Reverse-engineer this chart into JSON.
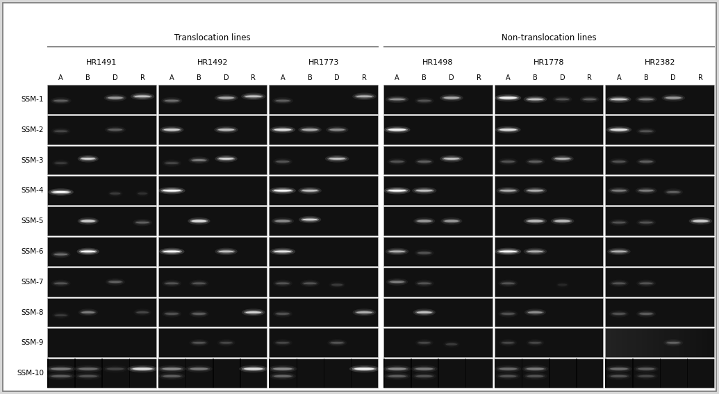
{
  "translocation_label": "Translocation lines",
  "non_translocation_label": "Non-translocation lines",
  "line_groups": [
    {
      "name": "HR1491",
      "translocation": true
    },
    {
      "name": "HR1492",
      "translocation": true
    },
    {
      "name": "HR1773",
      "translocation": true
    },
    {
      "name": "HR1498",
      "translocation": false
    },
    {
      "name": "HR1778",
      "translocation": false
    },
    {
      "name": "HR2382",
      "translocation": false
    }
  ],
  "channels": [
    "A",
    "B",
    "D",
    "R"
  ],
  "ssm_labels": [
    "SSM-1",
    "SSM-2",
    "SSM-3",
    "SSM-4",
    "SSM-5",
    "SSM-6",
    "SSM-7",
    "SSM-8",
    "SSM-9",
    "SSM-10"
  ],
  "outer_bg": "#d8d8d8",
  "panel_bg": "#111111",
  "bands": {
    "HR1491": {
      "SSM-1": [
        {
          "ch": "A",
          "yf": 0.55,
          "wf": 0.7,
          "br": 0.55
        },
        {
          "ch": "D",
          "yf": 0.45,
          "wf": 0.75,
          "br": 0.75
        },
        {
          "ch": "R",
          "yf": 0.4,
          "wf": 0.8,
          "br": 0.85
        }
      ],
      "SSM-2": [
        {
          "ch": "A",
          "yf": 0.55,
          "wf": 0.65,
          "br": 0.45
        },
        {
          "ch": "D",
          "yf": 0.5,
          "wf": 0.7,
          "br": 0.55
        }
      ],
      "SSM-3": [
        {
          "ch": "A",
          "yf": 0.6,
          "wf": 0.6,
          "br": 0.4
        },
        {
          "ch": "B",
          "yf": 0.45,
          "wf": 0.7,
          "br": 0.9
        }
      ],
      "SSM-4": [
        {
          "ch": "A",
          "yf": 0.55,
          "wf": 0.85,
          "br": 1.0
        },
        {
          "ch": "D",
          "yf": 0.6,
          "wf": 0.5,
          "br": 0.4
        },
        {
          "ch": "R",
          "yf": 0.6,
          "wf": 0.45,
          "br": 0.35
        }
      ],
      "SSM-5": [
        {
          "ch": "B",
          "yf": 0.5,
          "wf": 0.7,
          "br": 0.9
        },
        {
          "ch": "R",
          "yf": 0.55,
          "wf": 0.65,
          "br": 0.55
        }
      ],
      "SSM-6": [
        {
          "ch": "A",
          "yf": 0.6,
          "wf": 0.65,
          "br": 0.6
        },
        {
          "ch": "B",
          "yf": 0.5,
          "wf": 0.75,
          "br": 1.0
        }
      ],
      "SSM-7": [
        {
          "ch": "A",
          "yf": 0.55,
          "wf": 0.65,
          "br": 0.5
        },
        {
          "ch": "D",
          "yf": 0.5,
          "wf": 0.65,
          "br": 0.55
        }
      ],
      "SSM-8": [
        {
          "ch": "A",
          "yf": 0.6,
          "wf": 0.6,
          "br": 0.4
        },
        {
          "ch": "B",
          "yf": 0.5,
          "wf": 0.65,
          "br": 0.65
        },
        {
          "ch": "R",
          "yf": 0.5,
          "wf": 0.6,
          "br": 0.45
        }
      ],
      "SSM-9": [],
      "SSM-10": [
        {
          "ch": "A",
          "yf": 0.35,
          "wf": 1.0,
          "br": 0.65
        },
        {
          "ch": "A",
          "yf": 0.6,
          "wf": 0.95,
          "br": 0.55
        },
        {
          "ch": "B",
          "yf": 0.35,
          "wf": 0.95,
          "br": 0.6
        },
        {
          "ch": "B",
          "yf": 0.6,
          "wf": 0.9,
          "br": 0.5
        },
        {
          "ch": "D",
          "yf": 0.35,
          "wf": 0.85,
          "br": 0.45
        },
        {
          "ch": "R",
          "yf": 0.35,
          "wf": 1.0,
          "br": 0.95
        }
      ]
    },
    "HR1492": {
      "SSM-1": [
        {
          "ch": "A",
          "yf": 0.55,
          "wf": 0.7,
          "br": 0.6
        },
        {
          "ch": "D",
          "yf": 0.45,
          "wf": 0.78,
          "br": 0.8
        },
        {
          "ch": "R",
          "yf": 0.4,
          "wf": 0.82,
          "br": 0.85
        }
      ],
      "SSM-2": [
        {
          "ch": "A",
          "yf": 0.5,
          "wf": 0.8,
          "br": 0.9
        },
        {
          "ch": "D",
          "yf": 0.5,
          "wf": 0.8,
          "br": 0.85
        }
      ],
      "SSM-3": [
        {
          "ch": "A",
          "yf": 0.6,
          "wf": 0.65,
          "br": 0.45
        },
        {
          "ch": "B",
          "yf": 0.5,
          "wf": 0.7,
          "br": 0.65
        },
        {
          "ch": "D",
          "yf": 0.45,
          "wf": 0.75,
          "br": 0.9
        }
      ],
      "SSM-4": [
        {
          "ch": "A",
          "yf": 0.5,
          "wf": 0.9,
          "br": 1.0
        }
      ],
      "SSM-5": [
        {
          "ch": "B",
          "yf": 0.5,
          "wf": 0.75,
          "br": 0.95
        }
      ],
      "SSM-6": [
        {
          "ch": "A",
          "yf": 0.5,
          "wf": 0.85,
          "br": 1.0
        },
        {
          "ch": "D",
          "yf": 0.5,
          "wf": 0.75,
          "br": 0.85
        }
      ],
      "SSM-7": [
        {
          "ch": "A",
          "yf": 0.55,
          "wf": 0.65,
          "br": 0.5
        },
        {
          "ch": "B",
          "yf": 0.55,
          "wf": 0.65,
          "br": 0.5
        }
      ],
      "SSM-8": [
        {
          "ch": "A",
          "yf": 0.55,
          "wf": 0.65,
          "br": 0.5
        },
        {
          "ch": "B",
          "yf": 0.55,
          "wf": 0.65,
          "br": 0.55
        },
        {
          "ch": "R",
          "yf": 0.5,
          "wf": 0.78,
          "br": 0.9
        }
      ],
      "SSM-9": [
        {
          "ch": "B",
          "yf": 0.5,
          "wf": 0.65,
          "br": 0.5
        },
        {
          "ch": "D",
          "yf": 0.5,
          "wf": 0.6,
          "br": 0.45
        }
      ],
      "SSM-10": [
        {
          "ch": "A",
          "yf": 0.35,
          "wf": 0.95,
          "br": 0.7
        },
        {
          "ch": "A",
          "yf": 0.6,
          "wf": 0.88,
          "br": 0.55
        },
        {
          "ch": "B",
          "yf": 0.35,
          "wf": 0.9,
          "br": 0.65
        },
        {
          "ch": "R",
          "yf": 0.35,
          "wf": 0.95,
          "br": 0.95
        }
      ]
    },
    "HR1773": {
      "SSM-1": [
        {
          "ch": "A",
          "yf": 0.55,
          "wf": 0.7,
          "br": 0.55
        },
        {
          "ch": "R",
          "yf": 0.4,
          "wf": 0.8,
          "br": 0.8
        }
      ],
      "SSM-2": [
        {
          "ch": "A",
          "yf": 0.5,
          "wf": 0.85,
          "br": 0.95
        },
        {
          "ch": "B",
          "yf": 0.5,
          "wf": 0.78,
          "br": 0.8
        },
        {
          "ch": "D",
          "yf": 0.5,
          "wf": 0.75,
          "br": 0.7
        }
      ],
      "SSM-3": [
        {
          "ch": "A",
          "yf": 0.55,
          "wf": 0.65,
          "br": 0.5
        },
        {
          "ch": "D",
          "yf": 0.45,
          "wf": 0.8,
          "br": 0.85
        }
      ],
      "SSM-4": [
        {
          "ch": "A",
          "yf": 0.5,
          "wf": 0.88,
          "br": 1.0
        },
        {
          "ch": "B",
          "yf": 0.5,
          "wf": 0.78,
          "br": 0.85
        }
      ],
      "SSM-5": [
        {
          "ch": "A",
          "yf": 0.5,
          "wf": 0.75,
          "br": 0.7
        },
        {
          "ch": "B",
          "yf": 0.45,
          "wf": 0.75,
          "br": 0.9
        }
      ],
      "SSM-6": [
        {
          "ch": "A",
          "yf": 0.5,
          "wf": 0.85,
          "br": 0.95
        }
      ],
      "SSM-7": [
        {
          "ch": "A",
          "yf": 0.55,
          "wf": 0.65,
          "br": 0.5
        },
        {
          "ch": "B",
          "yf": 0.55,
          "wf": 0.65,
          "br": 0.5
        },
        {
          "ch": "D",
          "yf": 0.6,
          "wf": 0.55,
          "br": 0.4
        }
      ],
      "SSM-8": [
        {
          "ch": "A",
          "yf": 0.55,
          "wf": 0.65,
          "br": 0.5
        },
        {
          "ch": "R",
          "yf": 0.5,
          "wf": 0.78,
          "br": 0.8
        }
      ],
      "SSM-9": [
        {
          "ch": "A",
          "yf": 0.5,
          "wf": 0.65,
          "br": 0.45
        },
        {
          "ch": "D",
          "yf": 0.5,
          "wf": 0.65,
          "br": 0.5
        }
      ],
      "SSM-10": [
        {
          "ch": "A",
          "yf": 0.35,
          "wf": 0.95,
          "br": 0.7
        },
        {
          "ch": "A",
          "yf": 0.6,
          "wf": 0.88,
          "br": 0.58
        },
        {
          "ch": "R",
          "yf": 0.35,
          "wf": 1.0,
          "br": 1.0
        }
      ]
    },
    "HR1498": {
      "SSM-1": [
        {
          "ch": "A",
          "yf": 0.5,
          "wf": 0.78,
          "br": 0.7
        },
        {
          "ch": "B",
          "yf": 0.55,
          "wf": 0.65,
          "br": 0.5
        },
        {
          "ch": "D",
          "yf": 0.45,
          "wf": 0.78,
          "br": 0.8
        }
      ],
      "SSM-2": [
        {
          "ch": "A",
          "yf": 0.5,
          "wf": 0.88,
          "br": 1.0
        }
      ],
      "SSM-3": [
        {
          "ch": "A",
          "yf": 0.55,
          "wf": 0.65,
          "br": 0.5
        },
        {
          "ch": "B",
          "yf": 0.55,
          "wf": 0.65,
          "br": 0.55
        },
        {
          "ch": "D",
          "yf": 0.45,
          "wf": 0.78,
          "br": 0.85
        }
      ],
      "SSM-4": [
        {
          "ch": "A",
          "yf": 0.5,
          "wf": 0.88,
          "br": 1.0
        },
        {
          "ch": "B",
          "yf": 0.5,
          "wf": 0.82,
          "br": 0.85
        }
      ],
      "SSM-5": [
        {
          "ch": "B",
          "yf": 0.5,
          "wf": 0.72,
          "br": 0.75
        },
        {
          "ch": "D",
          "yf": 0.5,
          "wf": 0.72,
          "br": 0.75
        }
      ],
      "SSM-6": [
        {
          "ch": "A",
          "yf": 0.5,
          "wf": 0.78,
          "br": 0.8
        },
        {
          "ch": "B",
          "yf": 0.55,
          "wf": 0.65,
          "br": 0.5
        }
      ],
      "SSM-7": [
        {
          "ch": "A",
          "yf": 0.5,
          "wf": 0.72,
          "br": 0.65
        },
        {
          "ch": "B",
          "yf": 0.55,
          "wf": 0.65,
          "br": 0.5
        }
      ],
      "SSM-8": [
        {
          "ch": "B",
          "yf": 0.5,
          "wf": 0.75,
          "br": 0.85
        }
      ],
      "SSM-9": [
        {
          "ch": "B",
          "yf": 0.5,
          "wf": 0.6,
          "br": 0.45
        },
        {
          "ch": "D",
          "yf": 0.55,
          "wf": 0.55,
          "br": 0.4
        }
      ],
      "SSM-10": [
        {
          "ch": "A",
          "yf": 0.35,
          "wf": 0.92,
          "br": 0.7
        },
        {
          "ch": "A",
          "yf": 0.6,
          "wf": 0.88,
          "br": 0.55
        },
        {
          "ch": "B",
          "yf": 0.35,
          "wf": 0.88,
          "br": 0.65
        },
        {
          "ch": "B",
          "yf": 0.6,
          "wf": 0.82,
          "br": 0.5
        }
      ]
    },
    "HR1778": {
      "SSM-1": [
        {
          "ch": "A",
          "yf": 0.45,
          "wf": 0.88,
          "br": 1.0
        },
        {
          "ch": "B",
          "yf": 0.5,
          "wf": 0.78,
          "br": 0.85
        },
        {
          "ch": "D",
          "yf": 0.5,
          "wf": 0.65,
          "br": 0.5
        },
        {
          "ch": "R",
          "yf": 0.5,
          "wf": 0.65,
          "br": 0.55
        }
      ],
      "SSM-2": [
        {
          "ch": "A",
          "yf": 0.5,
          "wf": 0.85,
          "br": 0.95
        }
      ],
      "SSM-3": [
        {
          "ch": "A",
          "yf": 0.55,
          "wf": 0.65,
          "br": 0.5
        },
        {
          "ch": "B",
          "yf": 0.55,
          "wf": 0.65,
          "br": 0.55
        },
        {
          "ch": "D",
          "yf": 0.45,
          "wf": 0.75,
          "br": 0.8
        }
      ],
      "SSM-4": [
        {
          "ch": "A",
          "yf": 0.5,
          "wf": 0.78,
          "br": 0.8
        },
        {
          "ch": "B",
          "yf": 0.5,
          "wf": 0.78,
          "br": 0.8
        }
      ],
      "SSM-5": [
        {
          "ch": "B",
          "yf": 0.5,
          "wf": 0.78,
          "br": 0.85
        },
        {
          "ch": "D",
          "yf": 0.5,
          "wf": 0.78,
          "br": 0.85
        }
      ],
      "SSM-6": [
        {
          "ch": "A",
          "yf": 0.5,
          "wf": 0.88,
          "br": 1.0
        },
        {
          "ch": "B",
          "yf": 0.5,
          "wf": 0.78,
          "br": 0.8
        }
      ],
      "SSM-7": [
        {
          "ch": "A",
          "yf": 0.55,
          "wf": 0.65,
          "br": 0.5
        },
        {
          "ch": "D",
          "yf": 0.6,
          "wf": 0.45,
          "br": 0.3
        }
      ],
      "SSM-8": [
        {
          "ch": "A",
          "yf": 0.55,
          "wf": 0.65,
          "br": 0.5
        },
        {
          "ch": "B",
          "yf": 0.5,
          "wf": 0.72,
          "br": 0.7
        }
      ],
      "SSM-9": [
        {
          "ch": "A",
          "yf": 0.5,
          "wf": 0.6,
          "br": 0.45
        },
        {
          "ch": "B",
          "yf": 0.5,
          "wf": 0.6,
          "br": 0.45
        }
      ],
      "SSM-10": [
        {
          "ch": "A",
          "yf": 0.35,
          "wf": 0.88,
          "br": 0.6
        },
        {
          "ch": "A",
          "yf": 0.6,
          "wf": 0.82,
          "br": 0.5
        },
        {
          "ch": "B",
          "yf": 0.35,
          "wf": 0.88,
          "br": 0.65
        },
        {
          "ch": "B",
          "yf": 0.6,
          "wf": 0.82,
          "br": 0.5
        }
      ]
    },
    "HR2382": {
      "SSM-1": [
        {
          "ch": "A",
          "yf": 0.5,
          "wf": 0.82,
          "br": 0.88
        },
        {
          "ch": "B",
          "yf": 0.5,
          "wf": 0.72,
          "br": 0.65
        },
        {
          "ch": "D",
          "yf": 0.45,
          "wf": 0.78,
          "br": 0.75
        }
      ],
      "SSM-2": [
        {
          "ch": "A",
          "yf": 0.5,
          "wf": 0.85,
          "br": 0.95
        },
        {
          "ch": "B",
          "yf": 0.55,
          "wf": 0.65,
          "br": 0.5
        }
      ],
      "SSM-3": [
        {
          "ch": "A",
          "yf": 0.55,
          "wf": 0.65,
          "br": 0.5
        },
        {
          "ch": "B",
          "yf": 0.55,
          "wf": 0.65,
          "br": 0.55
        }
      ],
      "SSM-4": [
        {
          "ch": "A",
          "yf": 0.5,
          "wf": 0.72,
          "br": 0.65
        },
        {
          "ch": "B",
          "yf": 0.5,
          "wf": 0.72,
          "br": 0.65
        },
        {
          "ch": "D",
          "yf": 0.55,
          "wf": 0.65,
          "br": 0.55
        }
      ],
      "SSM-5": [
        {
          "ch": "A",
          "yf": 0.55,
          "wf": 0.65,
          "br": 0.5
        },
        {
          "ch": "B",
          "yf": 0.55,
          "wf": 0.65,
          "br": 0.5
        },
        {
          "ch": "R",
          "yf": 0.5,
          "wf": 0.78,
          "br": 0.9
        }
      ],
      "SSM-6": [
        {
          "ch": "A",
          "yf": 0.5,
          "wf": 0.78,
          "br": 0.8
        }
      ],
      "SSM-7": [
        {
          "ch": "A",
          "yf": 0.55,
          "wf": 0.65,
          "br": 0.5
        },
        {
          "ch": "B",
          "yf": 0.55,
          "wf": 0.65,
          "br": 0.5
        }
      ],
      "SSM-8": [
        {
          "ch": "A",
          "yf": 0.55,
          "wf": 0.65,
          "br": 0.5
        },
        {
          "ch": "B",
          "yf": 0.55,
          "wf": 0.65,
          "br": 0.55
        }
      ],
      "SSM-9": [
        {
          "ch": "D",
          "yf": 0.5,
          "wf": 0.65,
          "br": 0.55
        }
      ],
      "SSM-10": [
        {
          "ch": "A",
          "yf": 0.35,
          "wf": 0.88,
          "br": 0.6
        },
        {
          "ch": "A",
          "yf": 0.6,
          "wf": 0.82,
          "br": 0.5
        },
        {
          "ch": "B",
          "yf": 0.35,
          "wf": 0.82,
          "br": 0.55
        },
        {
          "ch": "B",
          "yf": 0.6,
          "wf": 0.78,
          "br": 0.45
        }
      ]
    }
  }
}
